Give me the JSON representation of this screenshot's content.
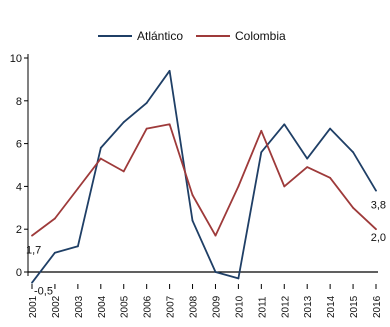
{
  "chart_data": {
    "type": "line",
    "title": "",
    "xlabel": "",
    "ylabel": "",
    "categories": [
      "2001",
      "2002",
      "2003",
      "2004",
      "2005",
      "2006",
      "2007",
      "2008",
      "2009",
      "2010",
      "2011",
      "2012",
      "2013",
      "2014",
      "2015",
      "2016"
    ],
    "ylim": [
      -0.5,
      10
    ],
    "yticks": [
      "0",
      "2",
      "4",
      "6",
      "8",
      "10"
    ],
    "grid": false,
    "legend_position": "top",
    "series": [
      {
        "name": "Atlántico",
        "color": "#1f3f66",
        "values": [
          -0.5,
          0.9,
          1.2,
          5.8,
          7.0,
          7.9,
          9.4,
          2.4,
          0.0,
          -0.3,
          5.6,
          6.9,
          5.3,
          6.7,
          5.6,
          3.8
        ]
      },
      {
        "name": "Colombia",
        "color": "#9e3a3a",
        "values": [
          1.7,
          2.5,
          3.9,
          5.3,
          4.7,
          6.7,
          6.9,
          3.6,
          1.7,
          4.0,
          6.6,
          4.0,
          4.9,
          4.4,
          3.0,
          2.0
        ]
      }
    ],
    "annotations": [
      {
        "text": "-0,5",
        "series": 0,
        "index": 0
      },
      {
        "text": "1,7",
        "series": 1,
        "index": 0
      },
      {
        "text": "3,8",
        "series": 0,
        "index": 15
      },
      {
        "text": "2,0",
        "series": 1,
        "index": 15
      }
    ]
  }
}
